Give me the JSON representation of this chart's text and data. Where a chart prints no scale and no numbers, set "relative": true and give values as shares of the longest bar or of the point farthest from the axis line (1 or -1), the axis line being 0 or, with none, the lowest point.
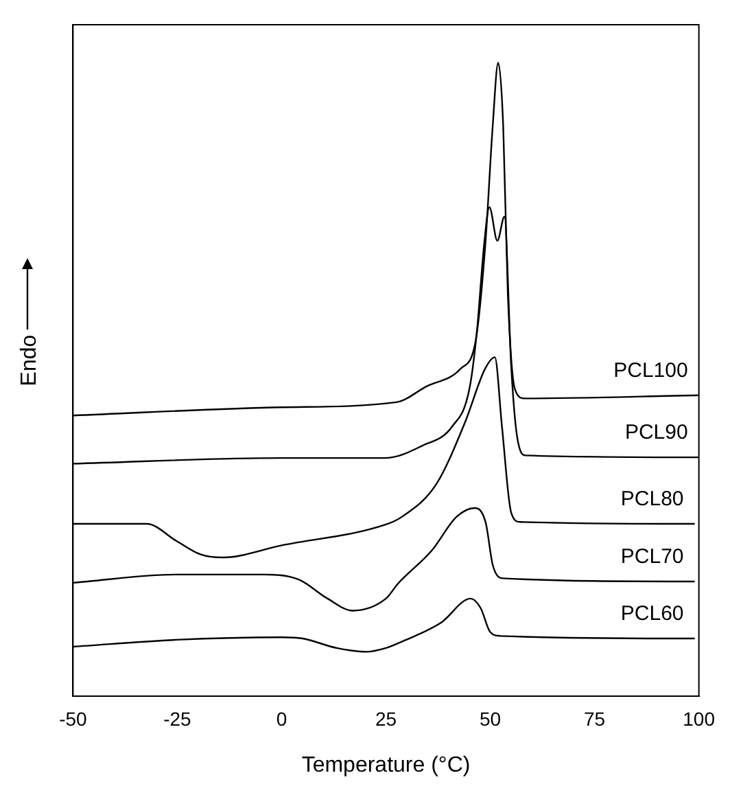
{
  "chart_data": {
    "type": "line",
    "xlabel": "Temperature (°C)",
    "ylabel": "Endo",
    "relative": true,
    "xlim": [
      -50,
      100
    ],
    "xticks": [
      -50,
      -25,
      0,
      25,
      50,
      75,
      100
    ],
    "series": [
      {
        "name": "PCL100",
        "color": "#000000",
        "x": [
          -50,
          0,
          27.5,
          34.7,
          42.9,
          46.5,
          48.8,
          50.6,
          51.9,
          53.1,
          54.2,
          55.9,
          58.2,
          100
        ],
        "values": [
          0.443,
          0.456,
          0.464,
          0.489,
          0.517,
          0.561,
          0.711,
          0.901,
          1.0,
          0.901,
          0.637,
          0.485,
          0.47,
          0.475
        ]
      },
      {
        "name": "PCL90",
        "color": "#000000",
        "x": [
          -50,
          0,
          25,
          33.6,
          40.9,
          45,
          46.8,
          48.5,
          49.8,
          51.7,
          53.4,
          55,
          56.4,
          58.5,
          100
        ],
        "values": [
          0.367,
          0.376,
          0.376,
          0.395,
          0.426,
          0.485,
          0.576,
          0.711,
          0.772,
          0.719,
          0.757,
          0.523,
          0.411,
          0.38,
          0.377
        ]
      },
      {
        "name": "PCL80",
        "color": "#000000",
        "x": [
          -50,
          -32.3,
          -25.2,
          -19.5,
          -14.1,
          0,
          25,
          28.8,
          37.1,
          44,
          48.7,
          51.1,
          52.8,
          55,
          57.1,
          99
        ],
        "values": [
          0.272,
          0.272,
          0.245,
          0.224,
          0.219,
          0.238,
          0.271,
          0.283,
          0.335,
          0.433,
          0.516,
          0.535,
          0.426,
          0.29,
          0.275,
          0.272
        ]
      },
      {
        "name": "PCL70",
        "color": "#000000",
        "x": [
          -50,
          -25.2,
          -4.1,
          4.1,
          11,
          17,
          25,
          27.8,
          36,
          41.9,
          46.3,
          48.9,
          50.6,
          53,
          99
        ],
        "values": [
          0.179,
          0.192,
          0.192,
          0.184,
          0.154,
          0.135,
          0.154,
          0.177,
          0.23,
          0.283,
          0.297,
          0.274,
          0.207,
          0.186,
          0.181
        ]
      },
      {
        "name": "PCL60",
        "color": "#000000",
        "x": [
          -50,
          -25.2,
          0,
          5,
          13.2,
          20.3,
          25,
          28.8,
          38.2,
          45.3,
          47.7,
          50,
          52.4,
          99
        ],
        "values": [
          0.078,
          0.089,
          0.093,
          0.091,
          0.076,
          0.07,
          0.076,
          0.086,
          0.116,
          0.154,
          0.139,
          0.101,
          0.095,
          0.091
        ]
      }
    ]
  }
}
